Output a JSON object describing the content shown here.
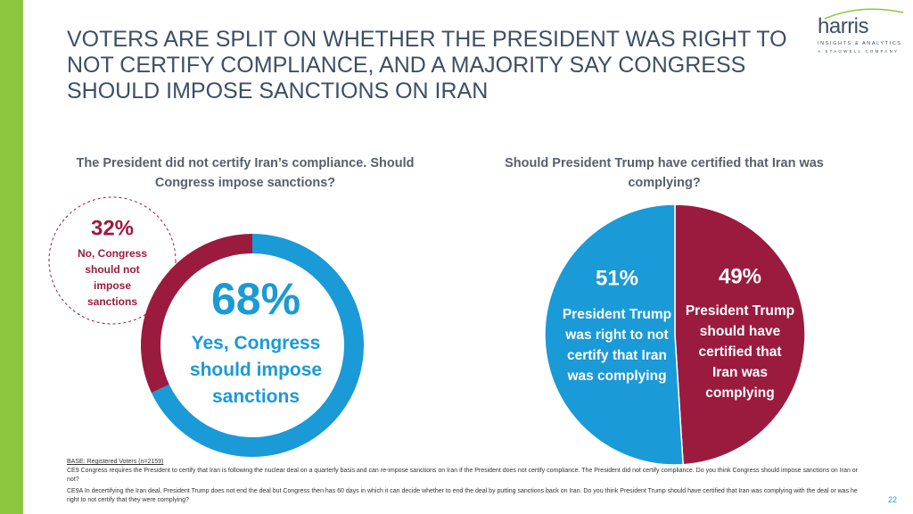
{
  "title": "VOTERS ARE SPLIT ON WHETHER THE PRESIDENT WAS RIGHT TO NOT CERTIFY COMPLIANCE, AND A MAJORITY SAY CONGRESS SHOULD IMPOSE SANCTIONS ON IRAN",
  "logo": {
    "name": "harris",
    "tagline": "INSIGHTS & ANALYTICS",
    "company": "A STAGWELL COMPANY"
  },
  "chart_data": [
    {
      "type": "donut",
      "title": "The President did not certify Iran’s compliance. Should Congress impose sanctions?",
      "categories": [
        "Yes, Congress should impose sanctions",
        "No, Congress should not impose sanctions"
      ],
      "values": [
        68,
        32
      ],
      "value_labels": [
        "68%",
        "32%"
      ],
      "colors": [
        "#1a9ad6",
        "#9b1b3f"
      ]
    },
    {
      "type": "pie",
      "title": "Should President Trump have certified that Iran was complying?",
      "categories": [
        "President Trump should have certified that Iran was complying",
        "President Trump was right to not certify that Iran was complying"
      ],
      "values": [
        49,
        51
      ],
      "value_labels": [
        "49%",
        "51%"
      ],
      "colors": [
        "#9b1b3f",
        "#1a9ad6"
      ]
    }
  ],
  "footnotes": {
    "base": "BASE: Registered Voters (n=2159)",
    "q1": "CE9 Congress requires the President to certify that Iran is following the nuclear deal on a quarterly basis and can re-impose sanctions on Iran if the President does not certify compliance. The President did not certify compliance. Do you think Congress should impose sanctions on Iran or not?",
    "q2": "CE9A In decertifying the Iran deal, President Trump does not end the deal but Congress then has 60 days in which it can decide whether to end the deal by putting sanctions back on Iran. Do you think President Trump should have certified that Iran was complying with the deal or was he right to not certify that they were complying?"
  },
  "page_number": "22"
}
